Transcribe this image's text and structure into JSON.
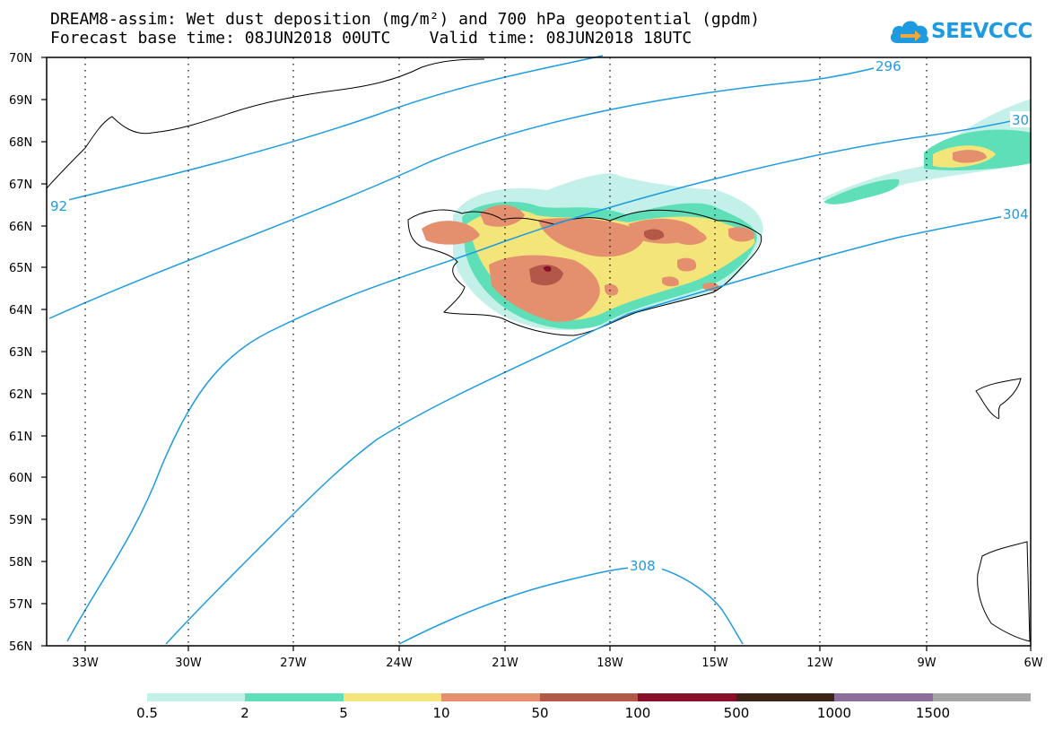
{
  "header": {
    "title_line1": "DREAM8-assim: Wet dust deposition (mg/m²) and 700 hPa geopotential (gpdm)",
    "title_line2": "Forecast base time: 08JUN2018 00UTC    Valid time: 08JUN2018 18UTC"
  },
  "logo": {
    "text": "SEEVCCC",
    "icon": "cloud-icon",
    "color": "#1e9be0"
  },
  "map": {
    "lat_labels": [
      "70N",
      "69N",
      "68N",
      "67N",
      "66N",
      "65N",
      "64N",
      "63N",
      "62N",
      "61N",
      "60N",
      "59N",
      "58N",
      "57N",
      "56N"
    ],
    "lon_labels": [
      "33W",
      "30W",
      "27W",
      "24W",
      "21W",
      "18W",
      "15W",
      "12W",
      "9W",
      "6W"
    ],
    "contour_color": "#1e9be0",
    "contour_labels": [
      "296",
      "30",
      "92",
      "304",
      "308"
    ]
  },
  "legend": {
    "labels": [
      "0.5",
      "2",
      "5",
      "10",
      "50",
      "100",
      "500",
      "1000",
      "1500"
    ],
    "colors": [
      "#c4f0ea",
      "#5fdfb8",
      "#f3e57a",
      "#e48f6e",
      "#b35748",
      "#880f2a",
      "#3c2418",
      "#8c6d9c",
      "#a6a6a6"
    ]
  }
}
